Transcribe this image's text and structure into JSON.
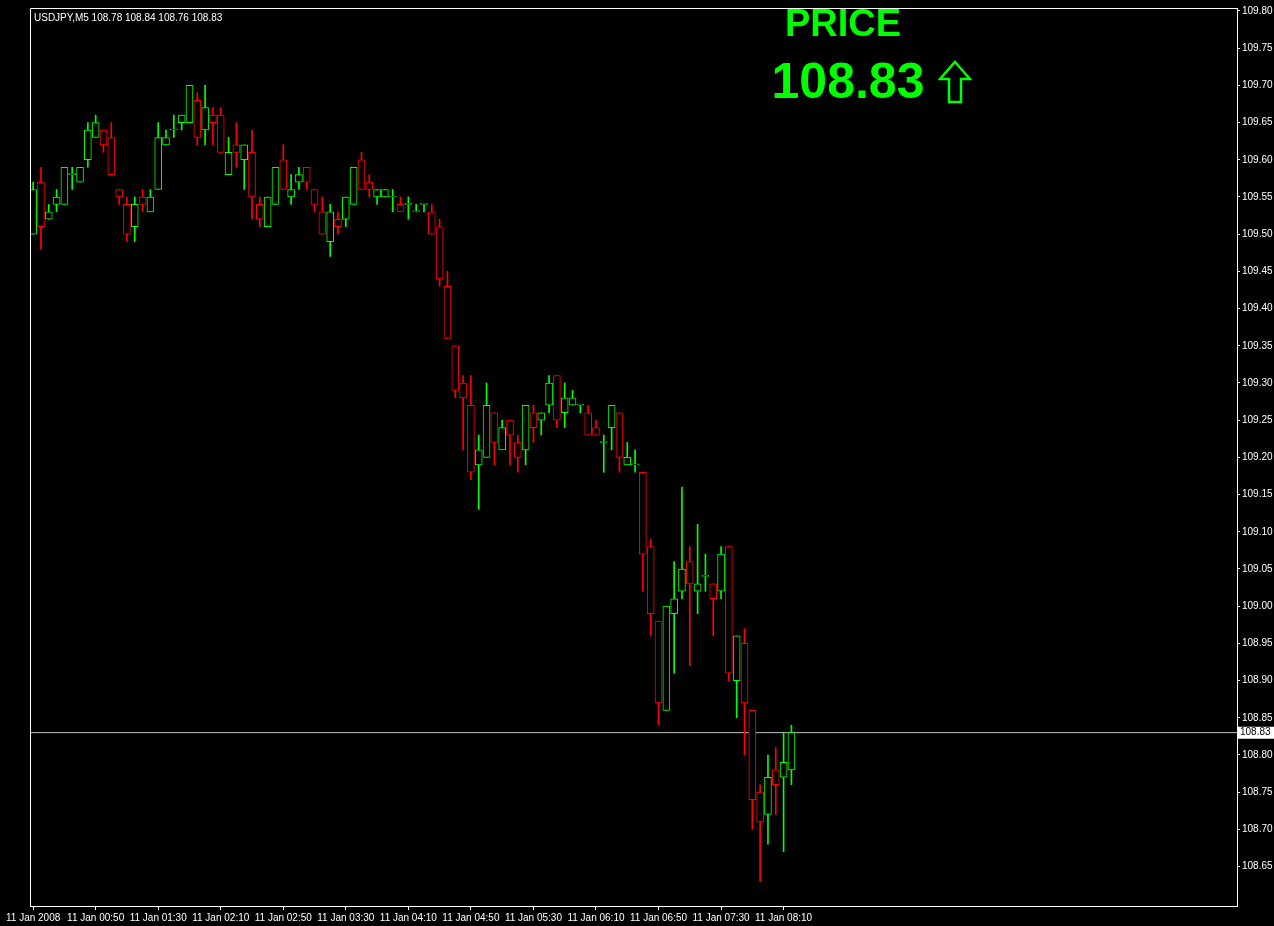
{
  "chart_data": {
    "type": "candlestick",
    "title": "USDJPY,M5 108.78 108.84 108.76 108.83",
    "x": [
      "2008-01-11T00:10",
      "2008-01-11T00:15",
      "2008-01-11T00:20",
      "2008-01-11T00:25",
      "2008-01-11T00:30",
      "2008-01-11T00:35",
      "2008-01-11T00:40",
      "2008-01-11T00:45",
      "2008-01-11T00:50",
      "2008-01-11T00:55",
      "2008-01-11T01:00",
      "2008-01-11T01:05",
      "2008-01-11T01:10",
      "2008-01-11T01:15",
      "2008-01-11T01:20",
      "2008-01-11T01:25",
      "2008-01-11T01:30",
      "2008-01-11T01:35",
      "2008-01-11T01:40",
      "2008-01-11T01:45",
      "2008-01-11T01:50",
      "2008-01-11T01:55",
      "2008-01-11T02:00",
      "2008-01-11T02:05",
      "2008-01-11T02:10",
      "2008-01-11T02:15",
      "2008-01-11T02:20",
      "2008-01-11T02:25",
      "2008-01-11T02:30",
      "2008-01-11T02:35",
      "2008-01-11T02:40",
      "2008-01-11T02:45",
      "2008-01-11T02:50",
      "2008-01-11T02:55",
      "2008-01-11T03:00",
      "2008-01-11T03:05",
      "2008-01-11T03:10",
      "2008-01-11T03:15",
      "2008-01-11T03:20",
      "2008-01-11T03:25",
      "2008-01-11T03:30",
      "2008-01-11T03:35",
      "2008-01-11T03:40",
      "2008-01-11T03:45",
      "2008-01-11T03:50",
      "2008-01-11T03:55",
      "2008-01-11T04:00",
      "2008-01-11T04:05",
      "2008-01-11T04:10",
      "2008-01-11T04:15",
      "2008-01-11T04:20",
      "2008-01-11T04:25",
      "2008-01-11T04:30",
      "2008-01-11T04:35",
      "2008-01-11T04:40",
      "2008-01-11T04:45",
      "2008-01-11T04:50",
      "2008-01-11T04:55",
      "2008-01-11T05:00",
      "2008-01-11T05:05",
      "2008-01-11T05:10",
      "2008-01-11T05:15",
      "2008-01-11T05:20",
      "2008-01-11T05:25",
      "2008-01-11T05:30",
      "2008-01-11T05:35",
      "2008-01-11T05:40",
      "2008-01-11T05:45",
      "2008-01-11T05:50",
      "2008-01-11T05:55",
      "2008-01-11T06:00",
      "2008-01-11T06:05",
      "2008-01-11T06:10",
      "2008-01-11T06:15",
      "2008-01-11T06:20",
      "2008-01-11T06:25",
      "2008-01-11T06:30",
      "2008-01-11T06:35",
      "2008-01-11T06:40",
      "2008-01-11T06:45",
      "2008-01-11T06:50",
      "2008-01-11T06:55",
      "2008-01-11T07:00",
      "2008-01-11T07:05",
      "2008-01-11T07:10",
      "2008-01-11T07:15",
      "2008-01-11T07:20",
      "2008-01-11T07:25",
      "2008-01-11T07:30",
      "2008-01-11T07:35",
      "2008-01-11T07:40",
      "2008-01-11T07:45",
      "2008-01-11T07:50",
      "2008-01-11T07:55",
      "2008-01-11T08:00",
      "2008-01-11T08:05",
      "2008-01-11T08:10",
      "2008-01-11T08:15"
    ],
    "ohlc": [
      [
        109.5,
        109.57,
        109.5,
        109.56
      ],
      [
        109.57,
        109.59,
        109.48,
        109.51
      ],
      [
        109.52,
        109.54,
        109.52,
        109.53
      ],
      [
        109.54,
        109.56,
        109.53,
        109.55
      ],
      [
        109.54,
        109.59,
        109.54,
        109.59
      ],
      [
        109.58,
        109.59,
        109.56,
        109.58
      ],
      [
        109.57,
        109.59,
        109.57,
        109.59
      ],
      [
        109.6,
        109.65,
        109.59,
        109.64
      ],
      [
        109.63,
        109.66,
        109.63,
        109.65
      ],
      [
        109.64,
        109.64,
        109.61,
        109.62
      ],
      [
        109.63,
        109.65,
        109.58,
        109.58
      ],
      [
        109.56,
        109.56,
        109.54,
        109.55
      ],
      [
        109.54,
        109.55,
        109.49,
        109.5
      ],
      [
        109.51,
        109.55,
        109.49,
        109.54
      ],
      [
        109.55,
        109.56,
        109.53,
        109.54
      ],
      [
        109.53,
        109.56,
        109.53,
        109.55
      ],
      [
        109.56,
        109.65,
        109.56,
        109.63
      ],
      [
        109.62,
        109.64,
        109.62,
        109.63
      ],
      [
        109.64,
        109.66,
        109.63,
        109.64
      ],
      [
        109.65,
        109.66,
        109.64,
        109.66
      ],
      [
        109.65,
        109.7,
        109.65,
        109.7
      ],
      [
        109.68,
        109.69,
        109.62,
        109.63
      ],
      [
        109.64,
        109.7,
        109.62,
        109.67
      ],
      [
        109.66,
        109.67,
        109.62,
        109.65
      ],
      [
        109.66,
        109.67,
        109.61,
        109.61
      ],
      [
        109.58,
        109.63,
        109.58,
        109.61
      ],
      [
        109.62,
        109.65,
        109.59,
        109.61
      ],
      [
        109.6,
        109.62,
        109.56,
        109.62
      ],
      [
        109.61,
        109.64,
        109.52,
        109.55
      ],
      [
        109.54,
        109.55,
        109.51,
        109.52
      ],
      [
        109.51,
        109.55,
        109.51,
        109.55
      ],
      [
        109.54,
        109.59,
        109.54,
        109.59
      ],
      [
        109.6,
        109.62,
        109.56,
        109.56
      ],
      [
        109.55,
        109.58,
        109.54,
        109.56
      ],
      [
        109.57,
        109.59,
        109.56,
        109.58
      ],
      [
        109.59,
        109.59,
        109.56,
        109.57
      ],
      [
        109.56,
        109.56,
        109.53,
        109.54
      ],
      [
        109.53,
        109.55,
        109.5,
        109.5
      ],
      [
        109.49,
        109.54,
        109.47,
        109.53
      ],
      [
        109.52,
        109.53,
        109.5,
        109.51
      ],
      [
        109.52,
        109.55,
        109.51,
        109.55
      ],
      [
        109.54,
        109.59,
        109.54,
        109.59
      ],
      [
        109.6,
        109.61,
        109.56,
        109.56
      ],
      [
        109.57,
        109.58,
        109.55,
        109.56
      ],
      [
        109.55,
        109.56,
        109.54,
        109.56
      ],
      [
        109.55,
        109.56,
        109.55,
        109.56
      ],
      [
        109.55,
        109.56,
        109.53,
        109.55
      ],
      [
        109.54,
        109.55,
        109.53,
        109.53
      ],
      [
        109.54,
        109.55,
        109.52,
        109.54
      ],
      [
        109.53,
        109.54,
        109.53,
        109.53
      ],
      [
        109.54,
        109.54,
        109.53,
        109.54
      ],
      [
        109.53,
        109.54,
        109.5,
        109.5
      ],
      [
        109.51,
        109.52,
        109.43,
        109.44
      ],
      [
        109.43,
        109.45,
        109.36,
        109.36
      ],
      [
        109.35,
        109.35,
        109.28,
        109.29
      ],
      [
        109.3,
        109.31,
        109.21,
        109.28
      ],
      [
        109.27,
        109.31,
        109.17,
        109.18
      ],
      [
        109.19,
        109.23,
        109.13,
        109.21
      ],
      [
        109.2,
        109.3,
        109.2,
        109.27
      ],
      [
        109.26,
        109.26,
        109.19,
        109.22
      ],
      [
        109.21,
        109.25,
        109.21,
        109.24
      ],
      [
        109.25,
        109.25,
        109.19,
        109.23
      ],
      [
        109.22,
        109.23,
        109.18,
        109.2
      ],
      [
        109.21,
        109.27,
        109.19,
        109.27
      ],
      [
        109.26,
        109.27,
        109.22,
        109.24
      ],
      [
        109.25,
        109.26,
        109.23,
        109.26
      ],
      [
        109.27,
        109.31,
        109.26,
        109.3
      ],
      [
        109.31,
        109.31,
        109.24,
        109.25
      ],
      [
        109.26,
        109.3,
        109.24,
        109.28
      ],
      [
        109.27,
        109.29,
        109.27,
        109.28
      ],
      [
        109.27,
        109.27,
        109.26,
        109.27
      ],
      [
        109.26,
        109.27,
        109.23,
        109.23
      ],
      [
        109.24,
        109.25,
        109.23,
        109.23
      ],
      [
        109.22,
        109.23,
        109.18,
        109.22
      ],
      [
        109.24,
        109.27,
        109.21,
        109.27
      ],
      [
        109.26,
        109.26,
        109.18,
        109.2
      ],
      [
        109.19,
        109.22,
        109.19,
        109.2
      ],
      [
        109.19,
        109.21,
        109.18,
        109.19
      ],
      [
        109.18,
        109.18,
        109.02,
        109.07
      ],
      [
        109.08,
        109.09,
        108.96,
        108.99
      ],
      [
        108.98,
        108.98,
        108.84,
        108.87
      ],
      [
        108.86,
        109.0,
        108.86,
        109.0
      ],
      [
        108.99,
        109.06,
        108.91,
        109.01
      ],
      [
        109.02,
        109.16,
        109.01,
        109.05
      ],
      [
        109.06,
        109.08,
        108.92,
        109.03
      ],
      [
        109.02,
        109.11,
        108.99,
        109.03
      ],
      [
        109.04,
        109.07,
        109.02,
        109.04
      ],
      [
        109.03,
        109.03,
        108.96,
        109.01
      ],
      [
        109.02,
        109.08,
        109.01,
        109.07
      ],
      [
        109.08,
        109.08,
        108.9,
        108.91
      ],
      [
        108.9,
        108.96,
        108.85,
        108.96
      ],
      [
        108.95,
        108.97,
        108.8,
        108.87
      ],
      [
        108.86,
        108.86,
        108.7,
        108.74
      ],
      [
        108.75,
        108.76,
        108.63,
        108.71
      ],
      [
        108.72,
        108.8,
        108.68,
        108.77
      ],
      [
        108.78,
        108.81,
        108.72,
        108.76
      ],
      [
        108.77,
        108.83,
        108.67,
        108.79
      ],
      [
        108.78,
        108.84,
        108.76,
        108.83
      ]
    ],
    "colors": [
      "#00ff00",
      "#ff0000",
      "#00ff00",
      "#00ff00",
      "#00ff00",
      "#00ff00",
      "#00ff00",
      "#00ff00",
      "#00ff00",
      "#ff0000",
      "#ff0000",
      "#ff0000",
      "#ff0000",
      "#00ff00",
      "#ff0000",
      "#00ff00",
      "#00ff00",
      "#00ff00",
      "#00ff00",
      "#00ff00",
      "#00ff00",
      "#ff0000",
      "#00ff00",
      "#ff0000",
      "#ff0000",
      "#00ff00",
      "#ff0000",
      "#00ff00",
      "#ff0000",
      "#ff0000",
      "#00ff00",
      "#00ff00",
      "#ff0000",
      "#00ff00",
      "#00ff00",
      "#ff0000",
      "#ff0000",
      "#ff0000",
      "#00ff00",
      "#ff0000",
      "#00ff00",
      "#00ff00",
      "#ff0000",
      "#ff0000",
      "#00ff00",
      "#00ff00",
      "#00ff00",
      "#ff0000",
      "#00ff00",
      "#00ff00",
      "#00ff00",
      "#ff0000",
      "#ff0000",
      "#ff0000",
      "#ff0000",
      "#ff0000",
      "#ff0000",
      "#00ff00",
      "#00ff00",
      "#ff0000",
      "#00ff00",
      "#ff0000",
      "#ff0000",
      "#00ff00",
      "#ff0000",
      "#00ff00",
      "#00ff00",
      "#ff0000",
      "#00ff00",
      "#00ff00",
      "#00ff00",
      "#ff0000",
      "#ff0000",
      "#00ff00",
      "#00ff00",
      "#ff0000",
      "#00ff00",
      "#00ff00",
      "#ff0000",
      "#ff0000",
      "#ff0000",
      "#00ff00",
      "#00ff00",
      "#00ff00",
      "#ff0000",
      "#00ff00",
      "#00ff00",
      "#ff0000",
      "#00ff00",
      "#ff0000",
      "#00ff00",
      "#ff0000",
      "#ff0000",
      "#ff0000",
      "#00ff00",
      "#ff0000",
      "#00ff00",
      "#00ff00"
    ],
    "xlim": [
      "2008-01-11T00:08",
      "2008-01-11T13:00"
    ],
    "xticks": [
      {
        "value": "2008-01-11T00:10",
        "label": "11 Jan 2008"
      },
      {
        "value": "2008-01-11T00:50",
        "label": "11 Jan 00:50"
      },
      {
        "value": "2008-01-11T01:30",
        "label": "11 Jan 01:30"
      },
      {
        "value": "2008-01-11T02:10",
        "label": "11 Jan 02:10"
      },
      {
        "value": "2008-01-11T02:50",
        "label": "11 Jan 02:50"
      },
      {
        "value": "2008-01-11T03:30",
        "label": "11 Jan 03:30"
      },
      {
        "value": "2008-01-11T04:10",
        "label": "11 Jan 04:10"
      },
      {
        "value": "2008-01-11T04:50",
        "label": "11 Jan 04:50"
      },
      {
        "value": "2008-01-11T05:30",
        "label": "11 Jan 05:30"
      },
      {
        "value": "2008-01-11T06:10",
        "label": "11 Jan 06:10"
      },
      {
        "value": "2008-01-11T06:50",
        "label": "11 Jan 06:50"
      },
      {
        "value": "2008-01-11T07:30",
        "label": "11 Jan 07:30"
      },
      {
        "value": "2008-01-11T08:10",
        "label": "11 Jan 08:10"
      }
    ],
    "ylim": [
      108.597,
      109.804
    ],
    "yticks": [
      {
        "value": 108.65,
        "label": "108.65"
      },
      {
        "value": 108.7,
        "label": "108.70"
      },
      {
        "value": 108.75,
        "label": "108.75"
      },
      {
        "value": 108.8,
        "label": "108.80"
      },
      {
        "value": 108.85,
        "label": "108.85"
      },
      {
        "value": 108.9,
        "label": "108.90"
      },
      {
        "value": 108.95,
        "label": "108.95"
      },
      {
        "value": 109.0,
        "label": "109.00"
      },
      {
        "value": 109.05,
        "label": "109.05"
      },
      {
        "value": 109.1,
        "label": "109.10"
      },
      {
        "value": 109.15,
        "label": "109.15"
      },
      {
        "value": 109.2,
        "label": "109.20"
      },
      {
        "value": 109.25,
        "label": "109.25"
      },
      {
        "value": 109.3,
        "label": "109.30"
      },
      {
        "value": 109.35,
        "label": "109.35"
      },
      {
        "value": 109.4,
        "label": "109.40"
      },
      {
        "value": 109.45,
        "label": "109.45"
      },
      {
        "value": 109.5,
        "label": "109.50"
      },
      {
        "value": 109.55,
        "label": "109.55"
      },
      {
        "value": 109.6,
        "label": "109.60"
      },
      {
        "value": 109.65,
        "label": "109.65"
      },
      {
        "value": 109.7,
        "label": "109.70"
      },
      {
        "value": 109.75,
        "label": "109.75"
      },
      {
        "value": 109.8,
        "label": "109.80"
      }
    ],
    "ref_lines": [
      {
        "axis": "y",
        "value": 108.83,
        "label": "108.83",
        "color": "#c0c0c0"
      }
    ],
    "annotations": [
      "PRICE",
      "108.83"
    ]
  }
}
